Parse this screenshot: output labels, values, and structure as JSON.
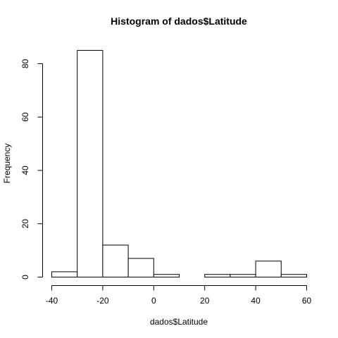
{
  "chart_data": {
    "type": "bar",
    "title": "Histogram of dados$Latitude",
    "xlabel": "dados$Latitude",
    "ylabel": "Frequency",
    "bins": [
      {
        "from": -40,
        "to": -30,
        "count": 2
      },
      {
        "from": -30,
        "to": -20,
        "count": 85
      },
      {
        "from": -20,
        "to": -10,
        "count": 12
      },
      {
        "from": -10,
        "to": 0,
        "count": 7
      },
      {
        "from": 0,
        "to": 10,
        "count": 1
      },
      {
        "from": 10,
        "to": 20,
        "count": 0
      },
      {
        "from": 20,
        "to": 30,
        "count": 1
      },
      {
        "from": 30,
        "to": 40,
        "count": 1
      },
      {
        "from": 40,
        "to": 50,
        "count": 6
      },
      {
        "from": 50,
        "to": 60,
        "count": 1
      }
    ],
    "xlim": [
      -40,
      60
    ],
    "ylim": [
      0,
      85
    ],
    "x_ticks": [
      "-40",
      "-20",
      "0",
      "20",
      "40",
      "60"
    ],
    "y_ticks": [
      "0",
      "20",
      "40",
      "60",
      "80"
    ],
    "grid": false,
    "bar_color": "#ffffff",
    "edge_color": "#000000"
  }
}
